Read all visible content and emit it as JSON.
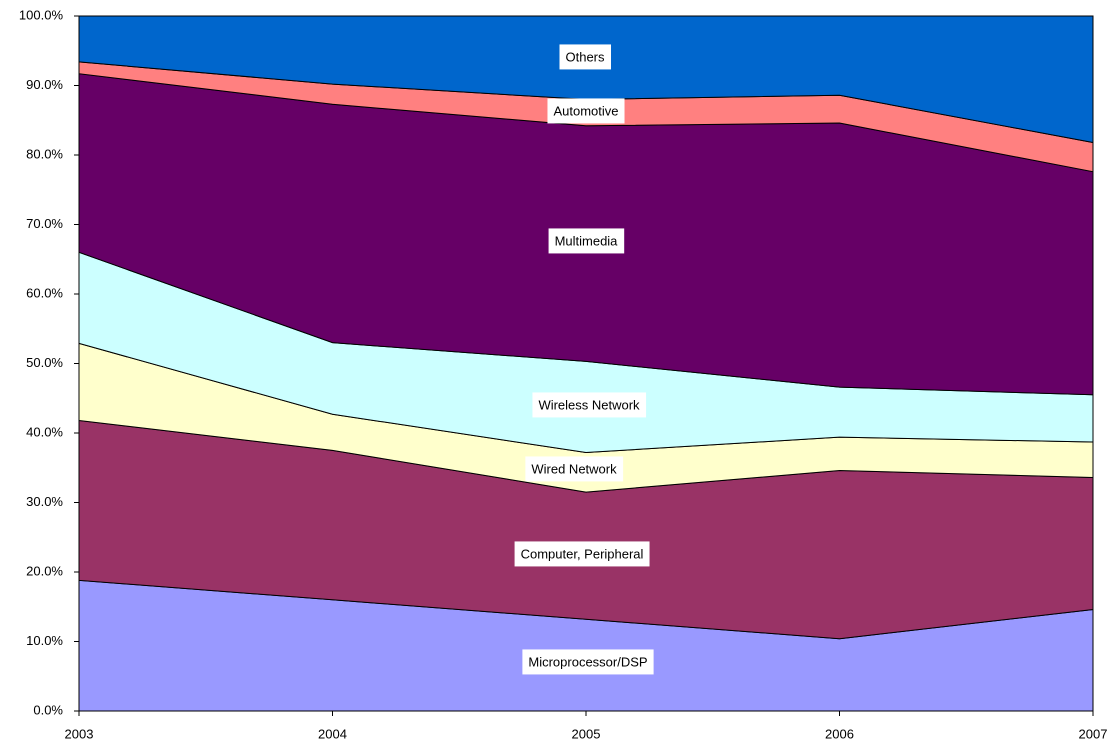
{
  "chart_data": {
    "type": "stacked_area",
    "categories": [
      "2003",
      "2004",
      "2005",
      "2006",
      "2007"
    ],
    "series": [
      {
        "name": "Microprocessor/DSP",
        "color": "#9999ff",
        "values": [
          18.8,
          16.0,
          13.2,
          10.4,
          14.6
        ]
      },
      {
        "name": "Computer, Peripheral",
        "color": "#993366",
        "values": [
          23.0,
          21.5,
          18.3,
          24.2,
          19.0
        ]
      },
      {
        "name": "Wired Network",
        "color": "#ffffcc",
        "values": [
          11.1,
          5.2,
          5.7,
          4.8,
          5.1
        ]
      },
      {
        "name": "Wireless Network",
        "color": "#ccffff",
        "values": [
          13.1,
          10.3,
          13.1,
          7.2,
          6.8
        ]
      },
      {
        "name": "Multimedia",
        "color": "#660066",
        "values": [
          25.7,
          34.3,
          33.9,
          38.0,
          32.1
        ]
      },
      {
        "name": "Automotive",
        "color": "#ff8080",
        "values": [
          1.7,
          2.9,
          3.8,
          4.0,
          4.2
        ]
      },
      {
        "name": "Others",
        "color": "#0066cc",
        "values": [
          6.6,
          9.8,
          12.0,
          11.4,
          18.2
        ]
      }
    ],
    "ylim": [
      0,
      100
    ],
    "yticks": [
      {
        "value": 0,
        "label": "0.0%"
      },
      {
        "value": 10,
        "label": "10.0%"
      },
      {
        "value": 20,
        "label": "20.0%"
      },
      {
        "value": 30,
        "label": "30.0%"
      },
      {
        "value": 40,
        "label": "40.0%"
      },
      {
        "value": 50,
        "label": "50.0%"
      },
      {
        "value": 60,
        "label": "60.0%"
      },
      {
        "value": 70,
        "label": "70.0%"
      },
      {
        "value": 80,
        "label": "80.0%"
      },
      {
        "value": 90,
        "label": "90.0%"
      },
      {
        "value": 100,
        "label": "100.0%"
      }
    ]
  }
}
